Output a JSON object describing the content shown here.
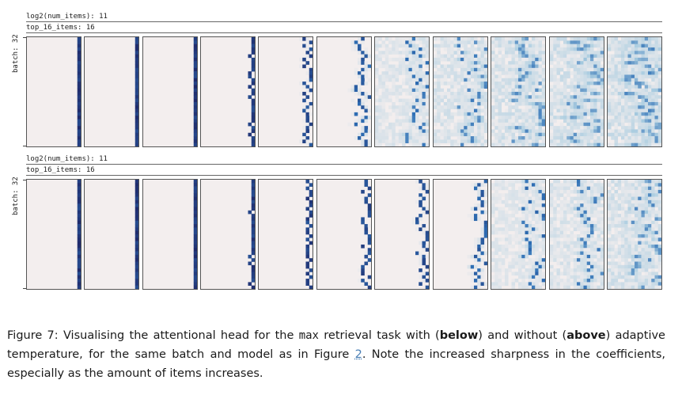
{
  "figures": [
    {
      "header_line1_label": "log2(num_items):",
      "header_line1_value": "11",
      "header_line2_label": "top_16_items:",
      "header_line2_value": "16",
      "ylabel": "batch: 32",
      "mode": "without_adaptive_temperature",
      "sharpness_per_panel": [
        1.0,
        1.0,
        1.0,
        0.95,
        0.8,
        0.6,
        0.4,
        0.25,
        0.15,
        0.08,
        0.04
      ]
    },
    {
      "header_line1_label": "log2(num_items):",
      "header_line1_value": "11",
      "header_line2_label": "top_16_items:",
      "header_line2_value": "16",
      "ylabel": "batch: 32",
      "mode": "with_adaptive_temperature",
      "sharpness_per_panel": [
        1.0,
        1.0,
        1.0,
        0.97,
        0.9,
        0.85,
        0.75,
        0.6,
        0.45,
        0.3,
        0.15
      ]
    }
  ],
  "caption": {
    "prefix": "Figure 7: Visualising the attentional head for the ",
    "code": "max",
    "mid1": " retrieval task with (",
    "bold1": "below",
    "mid2": ") and without (",
    "bold2": "above",
    "mid3": ") adaptive temperature, for the same batch and model as in Figure ",
    "ref": "2",
    "suffix": ". Note the increased sharpness in the coefficients, especially as the amount of items increases."
  },
  "colors": {
    "background_cell": "#f3eeee",
    "peak_cell": "#1f2a6b",
    "mid_cell": "#2e6fb5",
    "light_cell": "#a9cce0",
    "frame": "#555555"
  }
}
